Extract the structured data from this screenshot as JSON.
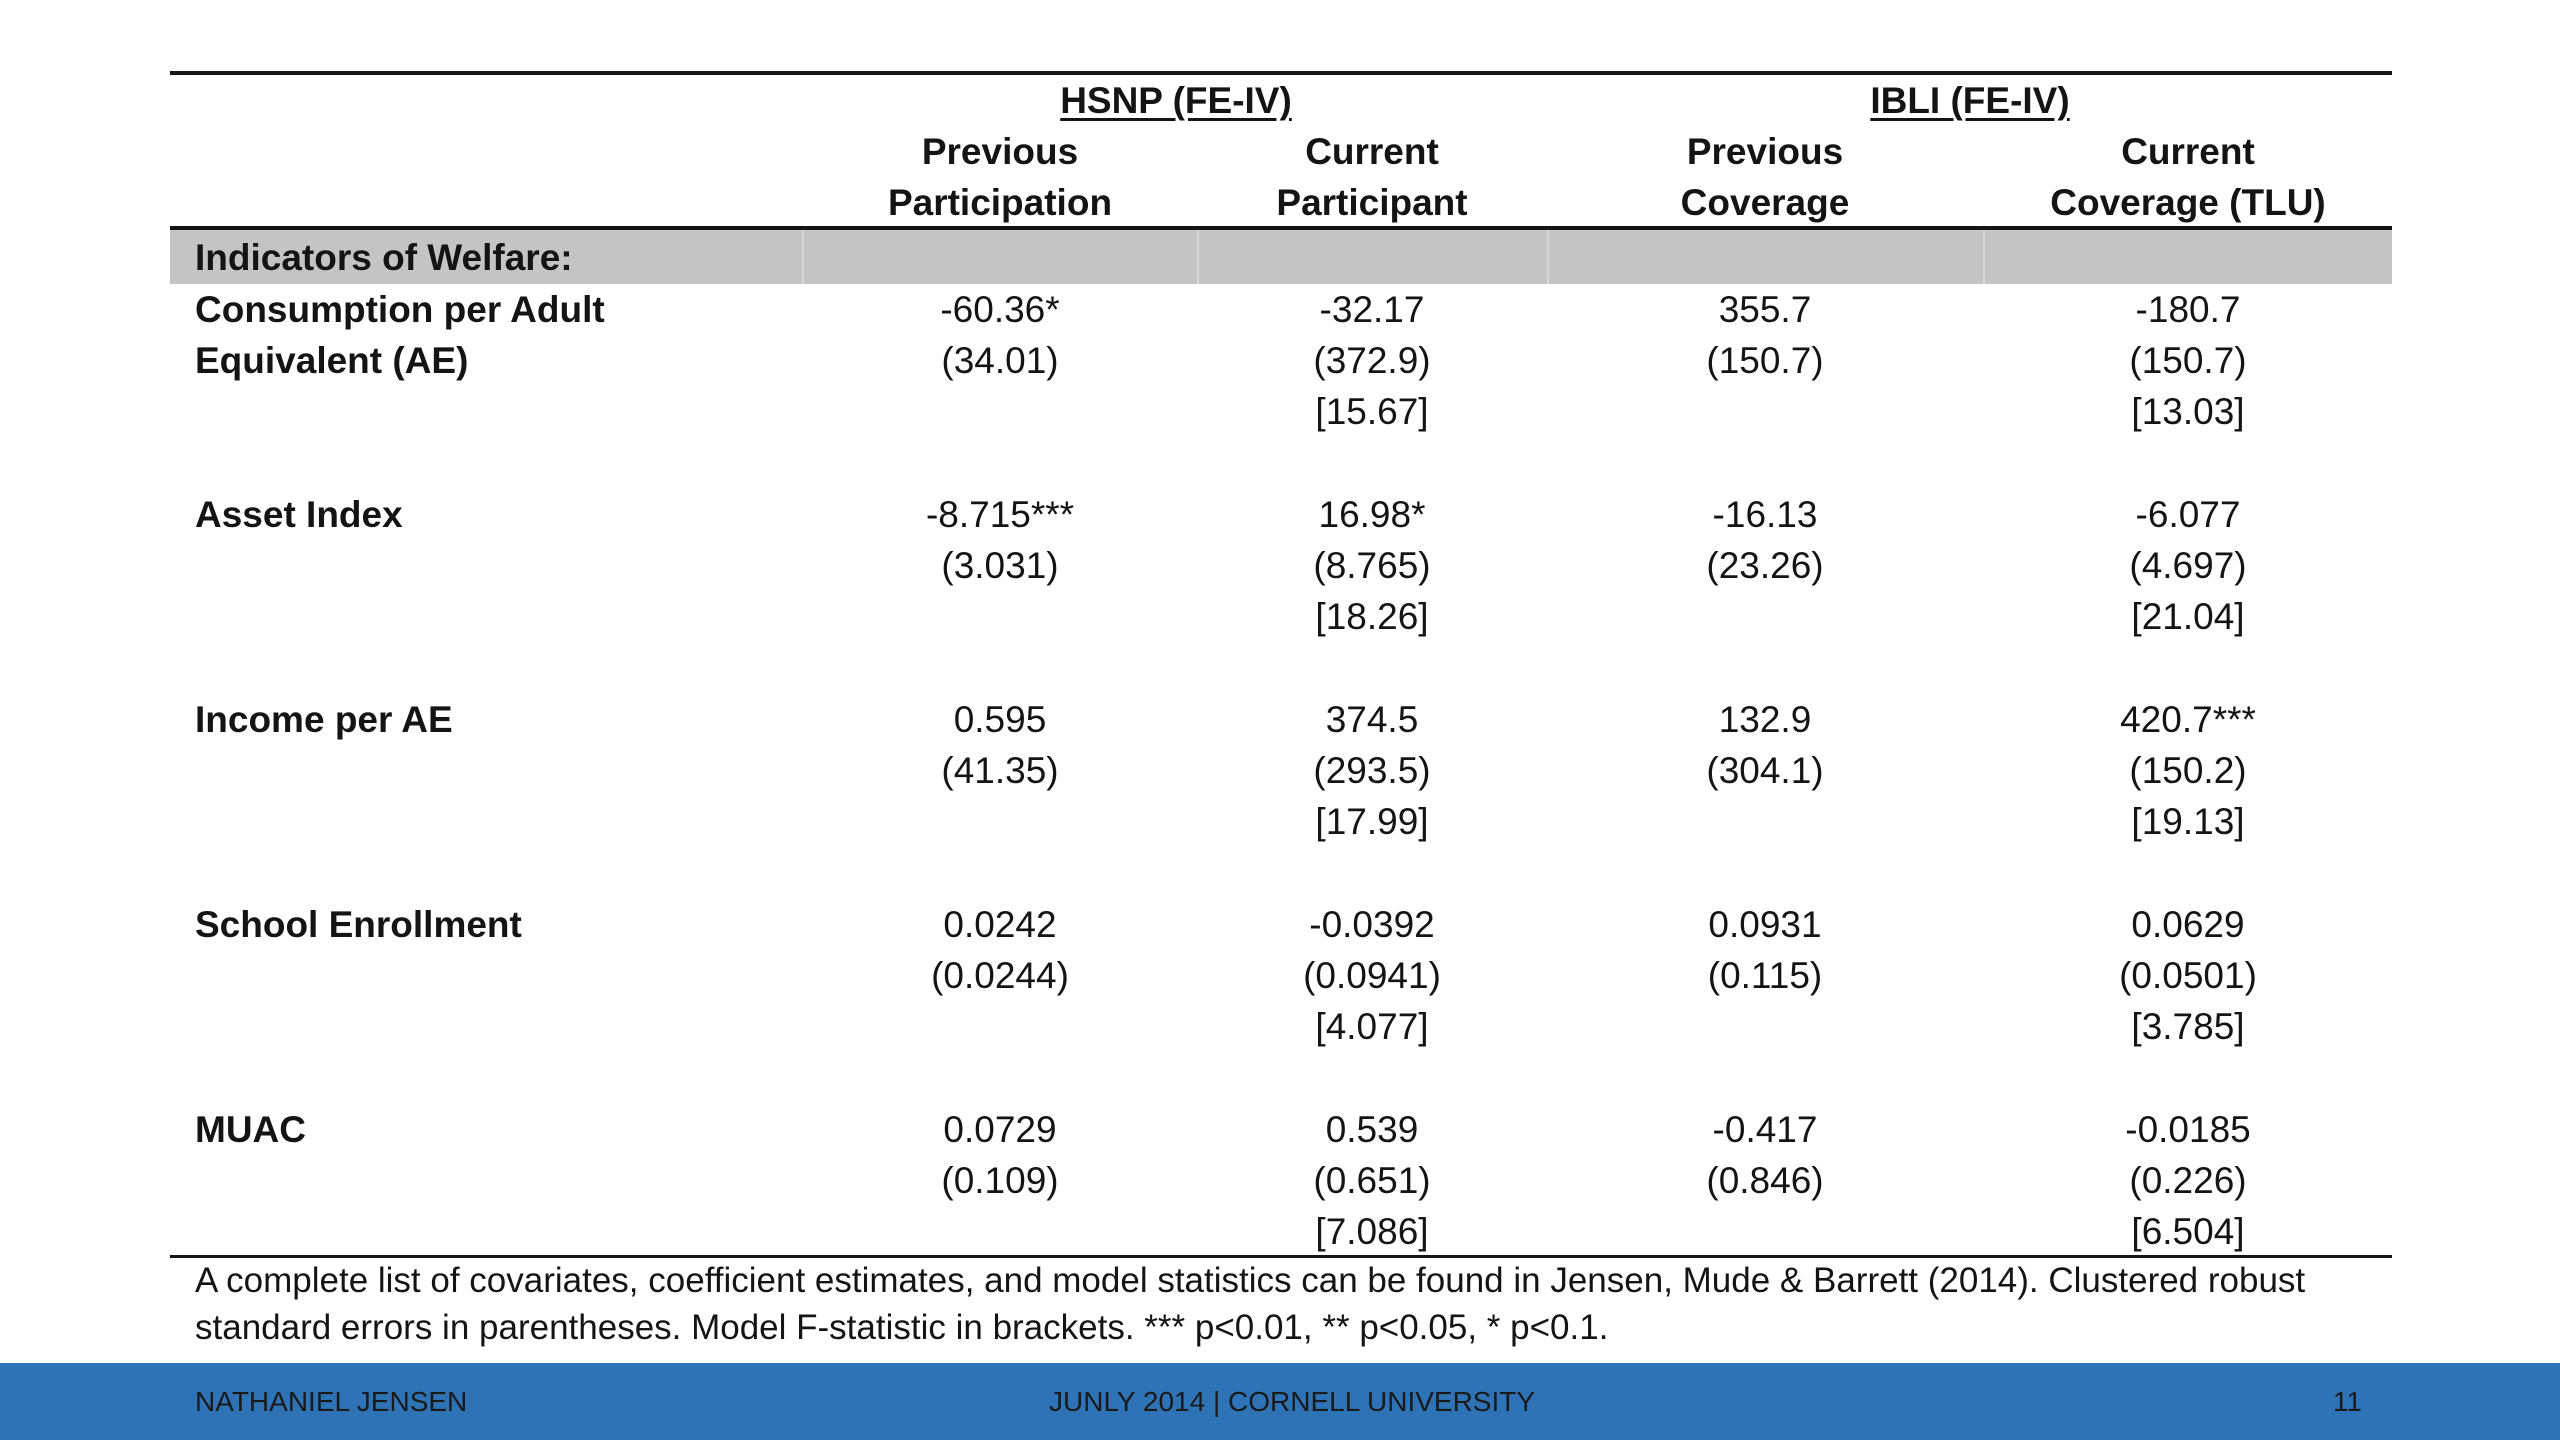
{
  "table": {
    "groups": [
      {
        "label": "HSNP (FE-IV)"
      },
      {
        "label": "IBLI (FE-IV)"
      }
    ],
    "columns": [
      {
        "line1": "Previous",
        "line2": "Participation"
      },
      {
        "line1": "Current",
        "line2": "Participant"
      },
      {
        "line1": "Previous",
        "line2": "Coverage"
      },
      {
        "line1": "Current",
        "line2": "Coverage (TLU)"
      }
    ],
    "section_label": "Indicators of Welfare:",
    "rows": [
      {
        "label_lines": [
          "Consumption per Adult",
          "Equivalent (AE)"
        ],
        "cells": [
          [
            "-60.36*",
            "(34.01)",
            ""
          ],
          [
            "-32.17",
            "(372.9)",
            "[15.67]"
          ],
          [
            "355.7",
            "(150.7)",
            ""
          ],
          [
            "-180.7",
            "(150.7)",
            "[13.03]"
          ]
        ]
      },
      {
        "label_lines": [
          "Asset Index"
        ],
        "cells": [
          [
            "-8.715***",
            "(3.031)",
            ""
          ],
          [
            "16.98*",
            "(8.765)",
            "[18.26]"
          ],
          [
            "-16.13",
            "(23.26)",
            ""
          ],
          [
            "-6.077",
            "(4.697)",
            "[21.04]"
          ]
        ]
      },
      {
        "label_lines": [
          "Income per AE"
        ],
        "cells": [
          [
            "0.595",
            "(41.35)",
            ""
          ],
          [
            "374.5",
            "(293.5)",
            "[17.99]"
          ],
          [
            "132.9",
            "(304.1)",
            ""
          ],
          [
            "420.7***",
            "(150.2)",
            "[19.13]"
          ]
        ]
      },
      {
        "label_lines": [
          "School Enrollment"
        ],
        "cells": [
          [
            "0.0242",
            "(0.0244)",
            ""
          ],
          [
            "-0.0392",
            "(0.0941)",
            "[4.077]"
          ],
          [
            "0.0931",
            "(0.115)",
            ""
          ],
          [
            "0.0629",
            "(0.0501)",
            "[3.785]"
          ]
        ]
      },
      {
        "label_lines": [
          "MUAC"
        ],
        "cells": [
          [
            "0.0729",
            "(0.109)",
            ""
          ],
          [
            "0.539",
            "(0.651)",
            "[7.086]"
          ],
          [
            "-0.417",
            "(0.846)",
            ""
          ],
          [
            "-0.0185",
            "(0.226)",
            "[6.504]"
          ]
        ]
      }
    ],
    "note_lines": [
      "A complete list of covariates, coefficient estimates, and model statistics can be found in Jensen, Mude & Barrett (2014). Clustered robust",
      "standard errors in parentheses. Model F-statistic in brackets. *** p<0.01, ** p<0.05, * p<0.1."
    ]
  },
  "footer": {
    "author": "NATHANIEL JENSEN",
    "event": "JUNLY 2014 | CORNELL UNIVERSITY",
    "page": "11",
    "color": "#2e73b5"
  }
}
